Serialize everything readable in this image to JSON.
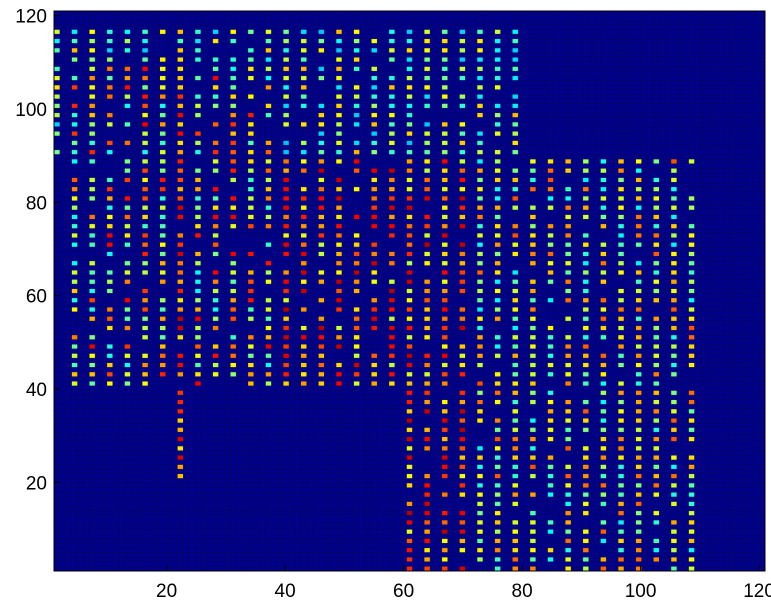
{
  "chart_data": {
    "type": "heatmap",
    "title": "",
    "xlabel": "",
    "ylabel": "",
    "xlim": [
      1,
      121
    ],
    "ylim": [
      1,
      121
    ],
    "grid_size": 121,
    "grid": false,
    "colormap": "jet",
    "x_ticks": [
      20,
      40,
      60,
      80,
      100,
      120
    ],
    "y_ticks": [
      20,
      40,
      60,
      80,
      100,
      120
    ],
    "x_tick_labels": [
      "20",
      "40",
      "60",
      "80",
      "100",
      "120"
    ],
    "y_tick_labels": [
      "20",
      "40",
      "60",
      "80",
      "100",
      "120"
    ],
    "background_value": 0,
    "value_range": [
      0,
      1
    ],
    "cell_pattern": "sparse bright cells on every other row and every third column; dense region x 20-110, y 1-120; red concentrated x 20-70 y 40-80 and x 60-70 y 1-40; yellow and cyan scattered elsewhere",
    "colors": {
      "background": "#00008f",
      "gridline": "#0a0a3a",
      "frame": "#000000"
    }
  }
}
